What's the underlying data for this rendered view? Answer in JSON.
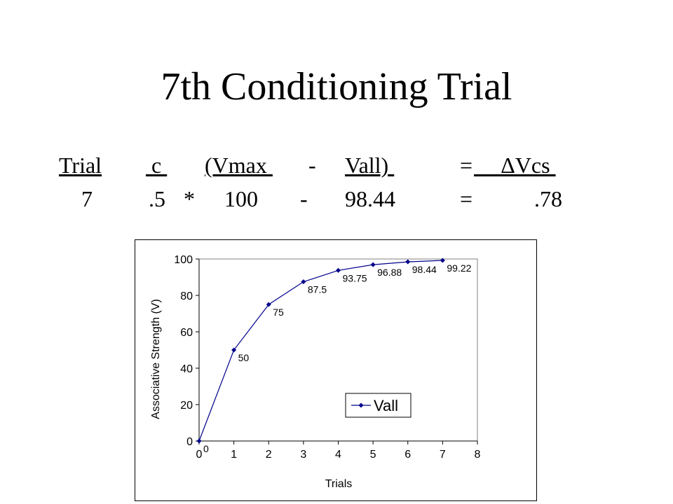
{
  "slide": {
    "title": "7th Conditioning Trial"
  },
  "equation": {
    "headers": {
      "trial": "Trial",
      "c": " c ",
      "vmax": "(Vmax ",
      "minus": "-",
      "vall": "Vall) ",
      "equals": "=",
      "delta_vcs": "     ΔVcs "
    },
    "values": {
      "trial": "7",
      "c": ".5",
      "times": "*",
      "vmax": "100",
      "minus": "-",
      "vall": "98.44",
      "equals": "=",
      "delta_vcs": ".78"
    }
  },
  "chart_data": {
    "type": "line",
    "xlabel": "Trials",
    "ylabel": "Associative Strength (V)",
    "xlim": [
      0,
      8
    ],
    "ylim": [
      0,
      100
    ],
    "x_ticks": [
      "0",
      "1",
      "2",
      "3",
      "4",
      "5",
      "6",
      "7",
      "8"
    ],
    "y_ticks": [
      "0",
      "20",
      "40",
      "60",
      "80",
      "100"
    ],
    "series": [
      {
        "name": "Vall",
        "color": "#00008B",
        "marker": "diamond",
        "x": [
          0,
          1,
          2,
          3,
          4,
          5,
          6,
          7
        ],
        "y": [
          0,
          50,
          75,
          87.5,
          93.75,
          96.88,
          98.44,
          99.22
        ],
        "labels": [
          "0",
          "50",
          "75",
          "87.5",
          "93.75",
          "96.88",
          "98.44",
          "99.22"
        ]
      }
    ],
    "legend": "bottom-right",
    "grid": false
  }
}
